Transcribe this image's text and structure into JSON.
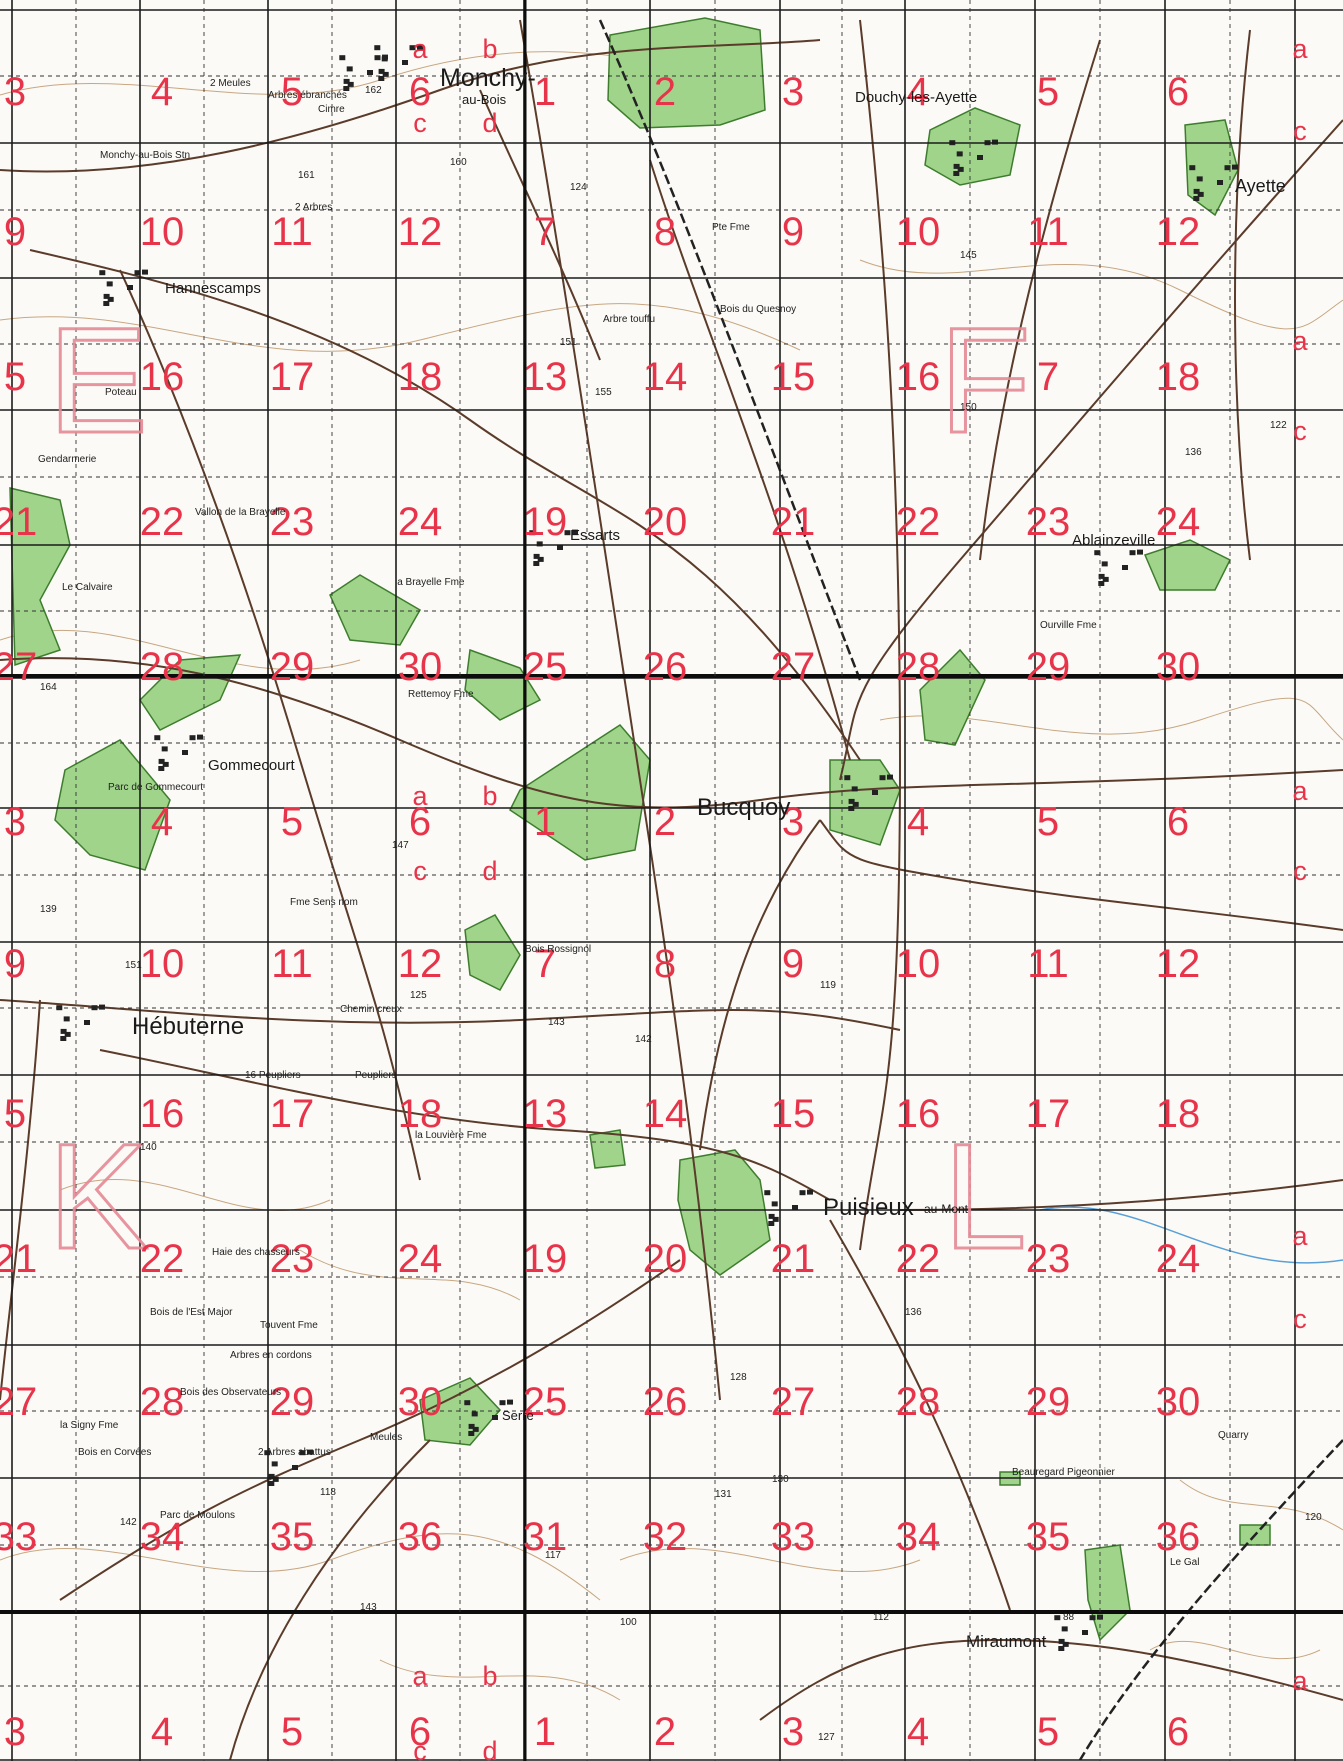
{
  "map": {
    "sheet_letters": [
      "E",
      "F",
      "K",
      "L"
    ],
    "square_numbers": [
      [
        "3",
        "4",
        "5",
        "6",
        "1",
        "2",
        "3",
        "4",
        "5",
        "6"
      ],
      [
        "9",
        "10",
        "11",
        "12",
        "7",
        "8",
        "9",
        "10",
        "11",
        "12"
      ],
      [
        "5",
        "16",
        "17",
        "18",
        "13",
        "14",
        "15",
        "16",
        "7",
        "18"
      ],
      [
        "21",
        "22",
        "23",
        "24",
        "19",
        "20",
        "21",
        "22",
        "23",
        "24"
      ],
      [
        "27",
        "28",
        "29",
        "30",
        "25",
        "26",
        "27",
        "28",
        "29",
        "30"
      ],
      [
        "3",
        "4",
        "5",
        "6",
        "1",
        "2",
        "3",
        "4",
        "5",
        "6"
      ],
      [
        "9",
        "10",
        "11",
        "12",
        "7",
        "8",
        "9",
        "10",
        "11",
        "12"
      ],
      [
        "5",
        "16",
        "17",
        "18",
        "13",
        "14",
        "15",
        "16",
        "17",
        "18"
      ],
      [
        "21",
        "22",
        "23",
        "24",
        "19",
        "20",
        "21",
        "22",
        "23",
        "24"
      ],
      [
        "27",
        "28",
        "29",
        "30",
        "25",
        "26",
        "27",
        "28",
        "29",
        "30"
      ],
      [
        "33",
        "34",
        "35",
        "36",
        "31",
        "32",
        "33",
        "34",
        "35",
        "36"
      ],
      [
        "3",
        "4",
        "5",
        "6",
        "1",
        "2",
        "3",
        "4",
        "5",
        "6"
      ]
    ],
    "subsquare_letters": [
      "a",
      "b",
      "c",
      "d"
    ],
    "places": [
      {
        "name": "Monchy-",
        "size": "large"
      },
      {
        "name": "au-Bois",
        "size": "small"
      },
      {
        "name": "Douchy-les-Ayette",
        "size": "medium"
      },
      {
        "name": "Ayette",
        "size": "medium"
      },
      {
        "name": "Hannescamps",
        "size": "medium"
      },
      {
        "name": "Essarts",
        "size": "medium"
      },
      {
        "name": "Ablainzeville",
        "size": "medium"
      },
      {
        "name": "Gommecourt",
        "size": "medium"
      },
      {
        "name": "Bucquoy",
        "size": "large"
      },
      {
        "name": "Hébuterne",
        "size": "large"
      },
      {
        "name": "Puisieux",
        "size": "large"
      },
      {
        "name": "-au-Mont",
        "size": "small"
      },
      {
        "name": "Serre",
        "size": "small"
      },
      {
        "name": "Miraumont",
        "size": "medium"
      }
    ],
    "minor_labels": [
      "2 Meules",
      "Arbres ébranchés",
      "Cimre",
      "Monchy-au-Bois Stn",
      "2 Arbres",
      "Pte Fme",
      "Arbre touffu",
      "Bois du Quesnoy",
      "Poteau",
      "Gendarmerie",
      "Vallon de la Brayelle",
      "la Brayelle Fme",
      "Le Calvaire",
      "Rettemoy Fme",
      "Parc de Gommecourt",
      "Fme Sens nom",
      "Bois Rossignol",
      "Chemin creux",
      "16 Peupliers",
      "Peupliers",
      "la Louvière Fme",
      "Haie des chasseurs",
      "Bois de l'Est Major",
      "Touvent Fme",
      "Arbres en cordons",
      "Bois des Observateurs",
      "la Signy Fme",
      "Bois en Corvées",
      "Meules",
      "2 Arbres abattus",
      "Parc de Moulons",
      "Beauregard Pigeonnier",
      "Quarry",
      "Le Gal",
      "Ourville Fme"
    ],
    "spot_heights": [
      "162",
      "161",
      "160",
      "124",
      "145",
      "151",
      "155",
      "150",
      "122",
      "136",
      "164",
      "147",
      "139",
      "151",
      "143",
      "119",
      "142",
      "125",
      "140",
      "136",
      "128",
      "142",
      "118",
      "143",
      "131",
      "130",
      "117",
      "112",
      "88",
      "120",
      "100",
      "127"
    ]
  }
}
